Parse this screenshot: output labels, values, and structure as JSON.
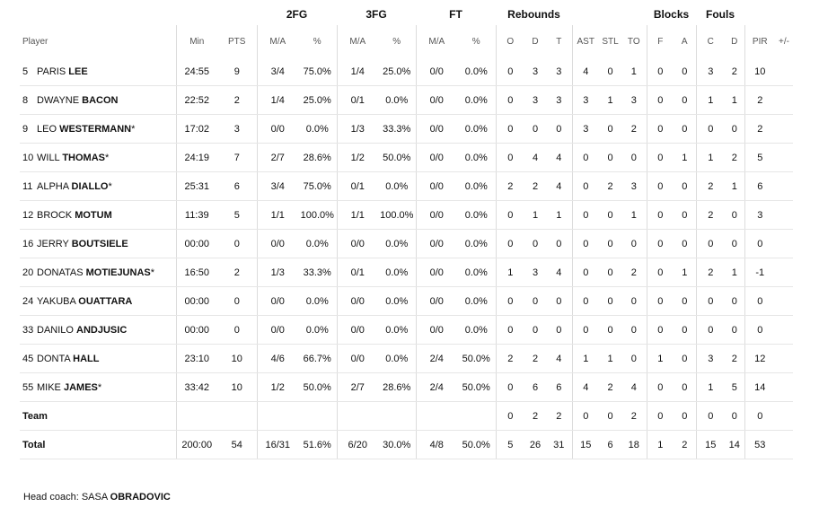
{
  "groups": {
    "fg2": "2FG",
    "fg3": "3FG",
    "ft": "FT",
    "rebounds": "Rebounds",
    "blocks": "Blocks",
    "fouls": "Fouls"
  },
  "headers": {
    "player": "Player",
    "min": "Min",
    "pts": "PTS",
    "ma1": "M/A",
    "pct1": "%",
    "ma2": "M/A",
    "pct2": "%",
    "ma3": "M/A",
    "pct3": "%",
    "o": "O",
    "d": "D",
    "t": "T",
    "ast": "AST",
    "stl": "STL",
    "to": "TO",
    "bf": "F",
    "ba": "A",
    "fc": "C",
    "fd": "D",
    "pir": "PIR",
    "pm": "+/-"
  },
  "players": [
    {
      "num": "5",
      "first": "PARIS",
      "last": "LEE",
      "star": "",
      "min": "24:55",
      "pts": "9",
      "fg2": "3/4",
      "fg2p": "75.0%",
      "fg3": "1/4",
      "fg3p": "25.0%",
      "ft": "0/0",
      "ftp": "0.0%",
      "o": "0",
      "d": "3",
      "t": "3",
      "ast": "4",
      "stl": "0",
      "to": "1",
      "bf": "0",
      "ba": "0",
      "fc": "3",
      "fd": "2",
      "pir": "10",
      "pm": ""
    },
    {
      "num": "8",
      "first": "DWAYNE",
      "last": "BACON",
      "star": "",
      "min": "22:52",
      "pts": "2",
      "fg2": "1/4",
      "fg2p": "25.0%",
      "fg3": "0/1",
      "fg3p": "0.0%",
      "ft": "0/0",
      "ftp": "0.0%",
      "o": "0",
      "d": "3",
      "t": "3",
      "ast": "3",
      "stl": "1",
      "to": "3",
      "bf": "0",
      "ba": "0",
      "fc": "1",
      "fd": "1",
      "pir": "2",
      "pm": ""
    },
    {
      "num": "9",
      "first": "LEO",
      "last": "WESTERMANN",
      "star": "*",
      "min": "17:02",
      "pts": "3",
      "fg2": "0/0",
      "fg2p": "0.0%",
      "fg3": "1/3",
      "fg3p": "33.3%",
      "ft": "0/0",
      "ftp": "0.0%",
      "o": "0",
      "d": "0",
      "t": "0",
      "ast": "3",
      "stl": "0",
      "to": "2",
      "bf": "0",
      "ba": "0",
      "fc": "0",
      "fd": "0",
      "pir": "2",
      "pm": ""
    },
    {
      "num": "10",
      "first": "WILL",
      "last": "THOMAS",
      "star": "*",
      "min": "24:19",
      "pts": "7",
      "fg2": "2/7",
      "fg2p": "28.6%",
      "fg3": "1/2",
      "fg3p": "50.0%",
      "ft": "0/0",
      "ftp": "0.0%",
      "o": "0",
      "d": "4",
      "t": "4",
      "ast": "0",
      "stl": "0",
      "to": "0",
      "bf": "0",
      "ba": "1",
      "fc": "1",
      "fd": "2",
      "pir": "5",
      "pm": ""
    },
    {
      "num": "11",
      "first": "ALPHA",
      "last": "DIALLO",
      "star": "*",
      "min": "25:31",
      "pts": "6",
      "fg2": "3/4",
      "fg2p": "75.0%",
      "fg3": "0/1",
      "fg3p": "0.0%",
      "ft": "0/0",
      "ftp": "0.0%",
      "o": "2",
      "d": "2",
      "t": "4",
      "ast": "0",
      "stl": "2",
      "to": "3",
      "bf": "0",
      "ba": "0",
      "fc": "2",
      "fd": "1",
      "pir": "6",
      "pm": ""
    },
    {
      "num": "12",
      "first": "BROCK",
      "last": "MOTUM",
      "star": "",
      "min": "11:39",
      "pts": "5",
      "fg2": "1/1",
      "fg2p": "100.0%",
      "fg3": "1/1",
      "fg3p": "100.0%",
      "ft": "0/0",
      "ftp": "0.0%",
      "o": "0",
      "d": "1",
      "t": "1",
      "ast": "0",
      "stl": "0",
      "to": "1",
      "bf": "0",
      "ba": "0",
      "fc": "2",
      "fd": "0",
      "pir": "3",
      "pm": ""
    },
    {
      "num": "16",
      "first": "JERRY",
      "last": "BOUTSIELE",
      "star": "",
      "min": "00:00",
      "pts": "0",
      "fg2": "0/0",
      "fg2p": "0.0%",
      "fg3": "0/0",
      "fg3p": "0.0%",
      "ft": "0/0",
      "ftp": "0.0%",
      "o": "0",
      "d": "0",
      "t": "0",
      "ast": "0",
      "stl": "0",
      "to": "0",
      "bf": "0",
      "ba": "0",
      "fc": "0",
      "fd": "0",
      "pir": "0",
      "pm": ""
    },
    {
      "num": "20",
      "first": "DONATAS",
      "last": "MOTIEJUNAS",
      "star": "*",
      "min": "16:50",
      "pts": "2",
      "fg2": "1/3",
      "fg2p": "33.3%",
      "fg3": "0/1",
      "fg3p": "0.0%",
      "ft": "0/0",
      "ftp": "0.0%",
      "o": "1",
      "d": "3",
      "t": "4",
      "ast": "0",
      "stl": "0",
      "to": "2",
      "bf": "0",
      "ba": "1",
      "fc": "2",
      "fd": "1",
      "pir": "-1",
      "pm": ""
    },
    {
      "num": "24",
      "first": "YAKUBA",
      "last": "OUATTARA",
      "star": "",
      "min": "00:00",
      "pts": "0",
      "fg2": "0/0",
      "fg2p": "0.0%",
      "fg3": "0/0",
      "fg3p": "0.0%",
      "ft": "0/0",
      "ftp": "0.0%",
      "o": "0",
      "d": "0",
      "t": "0",
      "ast": "0",
      "stl": "0",
      "to": "0",
      "bf": "0",
      "ba": "0",
      "fc": "0",
      "fd": "0",
      "pir": "0",
      "pm": ""
    },
    {
      "num": "33",
      "first": "DANILO",
      "last": "ANDJUSIC",
      "star": "",
      "min": "00:00",
      "pts": "0",
      "fg2": "0/0",
      "fg2p": "0.0%",
      "fg3": "0/0",
      "fg3p": "0.0%",
      "ft": "0/0",
      "ftp": "0.0%",
      "o": "0",
      "d": "0",
      "t": "0",
      "ast": "0",
      "stl": "0",
      "to": "0",
      "bf": "0",
      "ba": "0",
      "fc": "0",
      "fd": "0",
      "pir": "0",
      "pm": ""
    },
    {
      "num": "45",
      "first": "DONTA",
      "last": "HALL",
      "star": "",
      "min": "23:10",
      "pts": "10",
      "fg2": "4/6",
      "fg2p": "66.7%",
      "fg3": "0/0",
      "fg3p": "0.0%",
      "ft": "2/4",
      "ftp": "50.0%",
      "o": "2",
      "d": "2",
      "t": "4",
      "ast": "1",
      "stl": "1",
      "to": "0",
      "bf": "1",
      "ba": "0",
      "fc": "3",
      "fd": "2",
      "pir": "12",
      "pm": ""
    },
    {
      "num": "55",
      "first": "MIKE",
      "last": "JAMES",
      "star": "*",
      "min": "33:42",
      "pts": "10",
      "fg2": "1/2",
      "fg2p": "50.0%",
      "fg3": "2/7",
      "fg3p": "28.6%",
      "ft": "2/4",
      "ftp": "50.0%",
      "o": "0",
      "d": "6",
      "t": "6",
      "ast": "4",
      "stl": "2",
      "to": "4",
      "bf": "0",
      "ba": "0",
      "fc": "1",
      "fd": "5",
      "pir": "14",
      "pm": ""
    }
  ],
  "team": {
    "label": "Team",
    "o": "0",
    "d": "2",
    "t": "2",
    "ast": "0",
    "stl": "0",
    "to": "2",
    "bf": "0",
    "ba": "0",
    "fc": "0",
    "fd": "0",
    "pir": "0"
  },
  "total": {
    "label": "Total",
    "min": "200:00",
    "pts": "54",
    "fg2": "16/31",
    "fg2p": "51.6%",
    "fg3": "6/20",
    "fg3p": "30.0%",
    "ft": "4/8",
    "ftp": "50.0%",
    "o": "5",
    "d": "26",
    "t": "31",
    "ast": "15",
    "stl": "6",
    "to": "18",
    "bf": "1",
    "ba": "2",
    "fc": "15",
    "fd": "14",
    "pir": "53"
  },
  "coach": {
    "label": "Head coach:",
    "first": "SASA",
    "last": "OBRADOVIC"
  }
}
